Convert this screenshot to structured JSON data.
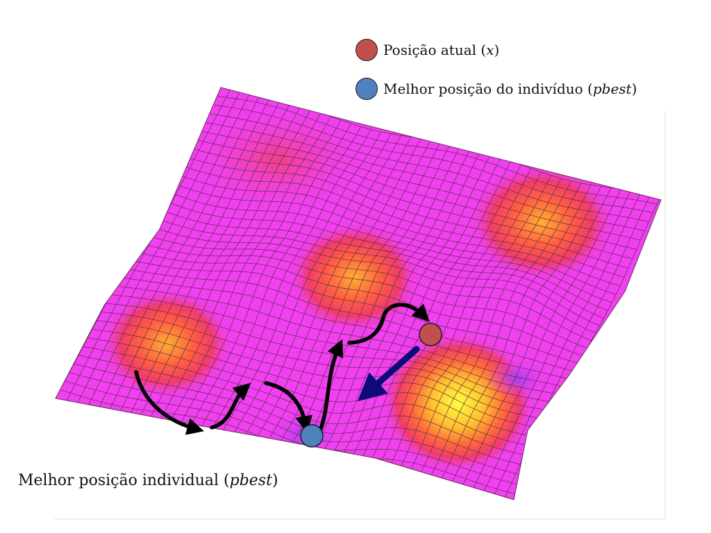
{
  "colors": {
    "surface": "#f040f0",
    "current_position": "#c0504d",
    "best_position": "#4f81bd",
    "path_arrow": "#000000",
    "velocity_arrow": "#0b0b7a"
  },
  "legend": {
    "current": {
      "prefix": "Posição atual (",
      "symbol": "x",
      "suffix": ")"
    },
    "best": {
      "prefix": "Melhor posição do indivíduo (",
      "symbol": "pbest",
      "suffix": ")"
    }
  },
  "annotation": {
    "prefix": "Melhor posição individual (",
    "symbol": "pbest",
    "suffix": ")"
  }
}
